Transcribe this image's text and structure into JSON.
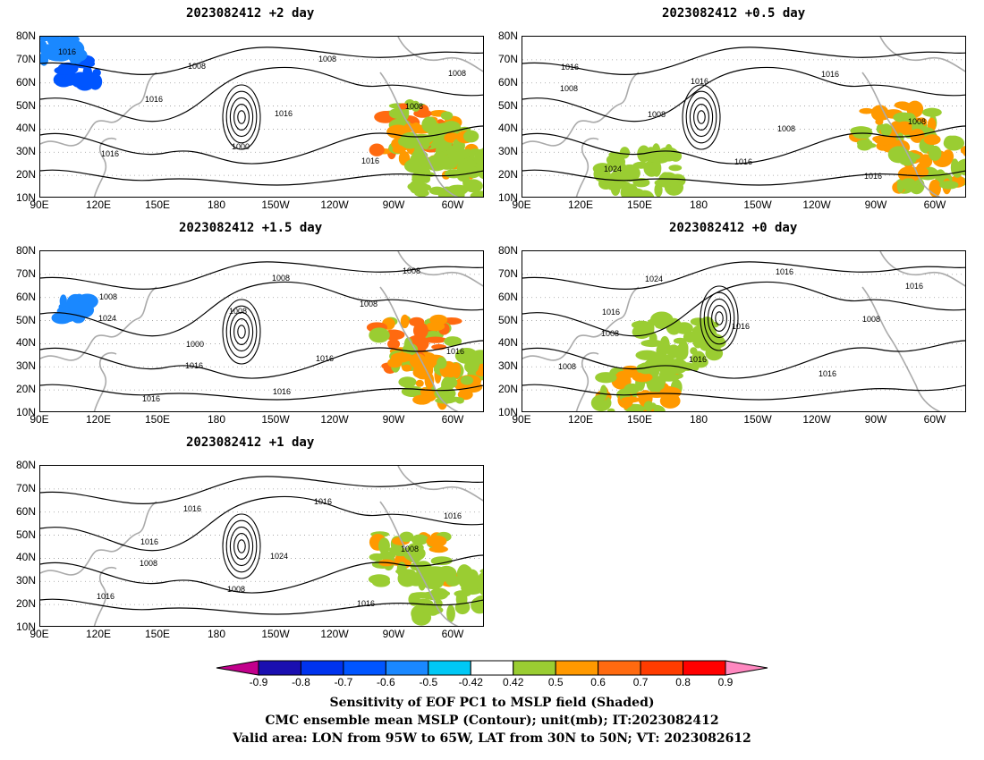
{
  "panels": [
    {
      "id": "p-2",
      "title": "2023082412 +2 day",
      "contour_labels": [
        "1016",
        "1016",
        "1000",
        "1008",
        "1008",
        "1016",
        "1008",
        "1016",
        "1016",
        "1008"
      ],
      "shading": [
        {
          "lon": 80,
          "lat": 40,
          "level": 0.7
        },
        {
          "lon": 70,
          "lat": 30,
          "level": 0.6
        },
        {
          "lon": 60,
          "lat": 20,
          "level": 0.5
        },
        {
          "lon": 110,
          "lat": 65,
          "level": -0.6
        },
        {
          "lon": 100,
          "lat": 75,
          "level": -0.5
        }
      ]
    },
    {
      "id": "p-05",
      "title": "2023082412 +0.5 day",
      "contour_labels": [
        "1016",
        "1008",
        "1016",
        "1016",
        "1008",
        "1024",
        "1016",
        "1008",
        "1016",
        "1008"
      ],
      "shading": [
        {
          "lon": 80,
          "lat": 40,
          "level": 0.6
        },
        {
          "lon": 60,
          "lat": 25,
          "level": 0.6
        },
        {
          "lon": 150,
          "lat": 20,
          "level": 0.5
        }
      ]
    },
    {
      "id": "p-15",
      "title": "2023082412 +1.5 day",
      "contour_labels": [
        "1008",
        "1000",
        "1016",
        "1008",
        "1016",
        "1016",
        "1008",
        "1016",
        "1008",
        "1024",
        "1016",
        "1008"
      ],
      "shading": [
        {
          "lon": 80,
          "lat": 40,
          "level": 0.7
        },
        {
          "lon": 65,
          "lat": 25,
          "level": 0.6
        },
        {
          "lon": 110,
          "lat": 55,
          "level": -0.5
        }
      ]
    },
    {
      "id": "p-0",
      "title": "2023082412 +0 day",
      "contour_labels": [
        "1016",
        "1016",
        "1016",
        "1008",
        "1008",
        "1024",
        "1016",
        "1016",
        "1016",
        "1008"
      ],
      "shading": [
        {
          "lon": 150,
          "lat": 20,
          "level": 0.6
        },
        {
          "lon": 170,
          "lat": 40,
          "level": 0.5
        }
      ]
    },
    {
      "id": "p-1",
      "title": "2023082412 +1 day",
      "contour_labels": [
        "1016",
        "1008",
        "1016",
        "1008",
        "1016",
        "1016",
        "1024",
        "1016",
        "1016",
        "1008"
      ],
      "shading": [
        {
          "lon": 80,
          "lat": 40,
          "level": 0.6
        },
        {
          "lon": 60,
          "lat": 25,
          "level": 0.5
        }
      ]
    }
  ],
  "lat_labels": [
    "80N",
    "70N",
    "60N",
    "50N",
    "40N",
    "30N",
    "20N",
    "10N"
  ],
  "lon_labels": [
    "90E",
    "120E",
    "150E",
    "180",
    "150W",
    "120W",
    "90W",
    "60W"
  ],
  "colorbar": {
    "labels": [
      "-0.9",
      "-0.8",
      "-0.7",
      "-0.6",
      "-0.5",
      "-0.42",
      "0.42",
      "0.5",
      "0.6",
      "0.7",
      "0.8",
      "0.9"
    ],
    "colors": [
      "#c2008c",
      "#1a0fb0",
      "#0033ee",
      "#0055ff",
      "#1a88ff",
      "#00c8f5",
      "#ffffff",
      "#9acd32",
      "#ff9900",
      "#ff6a10",
      "#ff3c00",
      "#ff0000",
      "#ff88c0"
    ]
  },
  "caption": {
    "line1": "Sensitivity of EOF PC1 to MSLP field (Shaded)",
    "line2": "CMC ensemble mean MSLP (Contour); unit(mb); IT:2023082412",
    "line3": "Valid area: LON from 95W to 65W, LAT from 30N to 50N; VT: 2023082612"
  }
}
